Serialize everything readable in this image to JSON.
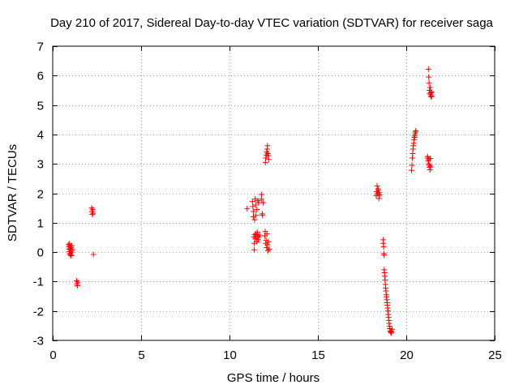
{
  "chart_data": {
    "type": "scatter",
    "title": "Day 210 of 2017, Sidereal Day-to-day VTEC variation (SDTVAR) for receiver saga",
    "xlabel": "GPS time / hours",
    "ylabel": "SDTVAR / TECUs",
    "xlim": [
      0,
      25
    ],
    "ylim": [
      -3,
      7
    ],
    "xticks": [
      0,
      5,
      10,
      15,
      20,
      25
    ],
    "yticks": [
      -3,
      -2,
      -1,
      0,
      1,
      2,
      3,
      4,
      5,
      6,
      7
    ],
    "grid": true,
    "marker": "plus",
    "color": "#ff0000",
    "series": [
      {
        "name": "SDTVAR",
        "points": [
          [
            0.9,
            0.25
          ],
          [
            0.92,
            0.18
          ],
          [
            0.93,
            0.1
          ],
          [
            0.95,
            0.28
          ],
          [
            0.95,
            0.02
          ],
          [
            0.97,
            -0.08
          ],
          [
            0.98,
            0.2
          ],
          [
            1.0,
            0.12
          ],
          [
            1.0,
            -0.04
          ],
          [
            1.02,
            0.06
          ],
          [
            1.03,
            -0.1
          ],
          [
            1.05,
            0.15
          ],
          [
            1.05,
            -0.12
          ],
          [
            1.07,
            0.22
          ],
          [
            1.08,
            0.0
          ],
          [
            1.1,
            0.08
          ],
          [
            1.35,
            -0.98
          ],
          [
            1.37,
            -1.08
          ],
          [
            1.4,
            -1.14
          ],
          [
            1.42,
            -1.02
          ],
          [
            2.2,
            1.5
          ],
          [
            2.22,
            1.38
          ],
          [
            2.24,
            1.28
          ],
          [
            2.26,
            1.45
          ],
          [
            2.28,
            1.32
          ],
          [
            2.3,
            -0.08
          ],
          [
            11.0,
            1.48
          ],
          [
            11.3,
            1.72
          ],
          [
            11.32,
            1.55
          ],
          [
            11.35,
            1.2
          ],
          [
            11.36,
            1.38
          ],
          [
            11.38,
            0.52
          ],
          [
            11.4,
            0.3
          ],
          [
            11.4,
            0.08
          ],
          [
            11.42,
            1.1
          ],
          [
            11.43,
            0.6
          ],
          [
            11.45,
            1.8
          ],
          [
            11.46,
            0.45
          ],
          [
            11.48,
            1.6
          ],
          [
            11.5,
            0.62
          ],
          [
            11.5,
            1.25
          ],
          [
            11.52,
            0.5
          ],
          [
            11.55,
            0.35
          ],
          [
            11.55,
            1.45
          ],
          [
            11.57,
            0.68
          ],
          [
            11.6,
            1.75
          ],
          [
            11.6,
            0.55
          ],
          [
            11.63,
            0.42
          ],
          [
            11.65,
            1.68
          ],
          [
            11.65,
            0.5
          ],
          [
            11.7,
            0.58
          ],
          [
            11.8,
            1.8
          ],
          [
            11.82,
            1.96
          ],
          [
            11.85,
            1.3
          ],
          [
            11.87,
            1.25
          ],
          [
            11.9,
            1.68
          ],
          [
            12.0,
            0.55
          ],
          [
            12.02,
            0.7
          ],
          [
            12.03,
            3.05
          ],
          [
            12.05,
            0.3
          ],
          [
            12.05,
            3.2
          ],
          [
            12.07,
            0.4
          ],
          [
            12.08,
            3.3
          ],
          [
            12.1,
            0.15
          ],
          [
            12.1,
            3.4
          ],
          [
            12.12,
            0.62
          ],
          [
            12.13,
            3.5
          ],
          [
            12.15,
            0.25
          ],
          [
            12.15,
            3.62
          ],
          [
            12.17,
            3.35
          ],
          [
            12.18,
            0.05
          ],
          [
            12.2,
            0.35
          ],
          [
            12.2,
            3.28
          ],
          [
            12.22,
            3.15
          ],
          [
            12.25,
            0.1
          ],
          [
            18.3,
            1.92
          ],
          [
            18.32,
            2.05
          ],
          [
            18.35,
            2.25
          ],
          [
            18.37,
            1.98
          ],
          [
            18.4,
            2.15
          ],
          [
            18.42,
            2.1
          ],
          [
            18.45,
            1.82
          ],
          [
            18.47,
            2.02
          ],
          [
            18.5,
            1.95
          ],
          [
            18.7,
            0.42
          ],
          [
            18.7,
            0.3
          ],
          [
            18.72,
            0.18
          ],
          [
            18.73,
            -0.05
          ],
          [
            18.75,
            -0.1
          ],
          [
            18.75,
            -0.6
          ],
          [
            18.77,
            -0.7
          ],
          [
            18.78,
            -0.82
          ],
          [
            18.8,
            -0.95
          ],
          [
            18.82,
            -1.1
          ],
          [
            18.83,
            -1.22
          ],
          [
            18.85,
            -1.32
          ],
          [
            18.87,
            -1.45
          ],
          [
            18.88,
            -1.52
          ],
          [
            18.9,
            -1.62
          ],
          [
            18.92,
            -1.72
          ],
          [
            18.93,
            -1.8
          ],
          [
            18.95,
            -1.9
          ],
          [
            18.97,
            -2.0
          ],
          [
            18.98,
            -2.12
          ],
          [
            19.0,
            -2.22
          ],
          [
            19.02,
            -2.32
          ],
          [
            19.03,
            -2.42
          ],
          [
            19.05,
            -2.52
          ],
          [
            19.07,
            -2.6
          ],
          [
            19.1,
            -2.68
          ],
          [
            19.12,
            -2.72
          ],
          [
            19.15,
            -2.75
          ],
          [
            19.17,
            -2.7
          ],
          [
            19.2,
            -2.62
          ],
          [
            20.3,
            2.78
          ],
          [
            20.32,
            2.95
          ],
          [
            20.34,
            3.2
          ],
          [
            20.36,
            3.35
          ],
          [
            20.38,
            3.5
          ],
          [
            20.4,
            3.62
          ],
          [
            20.42,
            3.7
          ],
          [
            20.44,
            3.82
          ],
          [
            20.46,
            3.9
          ],
          [
            20.48,
            3.95
          ],
          [
            20.5,
            4.02
          ],
          [
            20.52,
            4.08
          ],
          [
            20.54,
            4.12
          ],
          [
            21.2,
            3.25
          ],
          [
            21.22,
            3.2
          ],
          [
            21.24,
            3.1
          ],
          [
            21.25,
            6.22
          ],
          [
            21.26,
            3.15
          ],
          [
            21.27,
            5.95
          ],
          [
            21.28,
            3.0
          ],
          [
            21.29,
            5.75
          ],
          [
            21.3,
            2.95
          ],
          [
            21.31,
            5.5
          ],
          [
            21.32,
            2.88
          ],
          [
            21.33,
            5.4
          ],
          [
            21.34,
            2.8
          ],
          [
            21.35,
            5.6
          ],
          [
            21.36,
            3.18
          ],
          [
            21.37,
            5.35
          ],
          [
            21.38,
            2.92
          ],
          [
            21.39,
            5.28
          ],
          [
            21.4,
            5.42
          ],
          [
            21.42,
            5.45
          ],
          [
            21.44,
            5.3
          ]
        ]
      }
    ]
  }
}
